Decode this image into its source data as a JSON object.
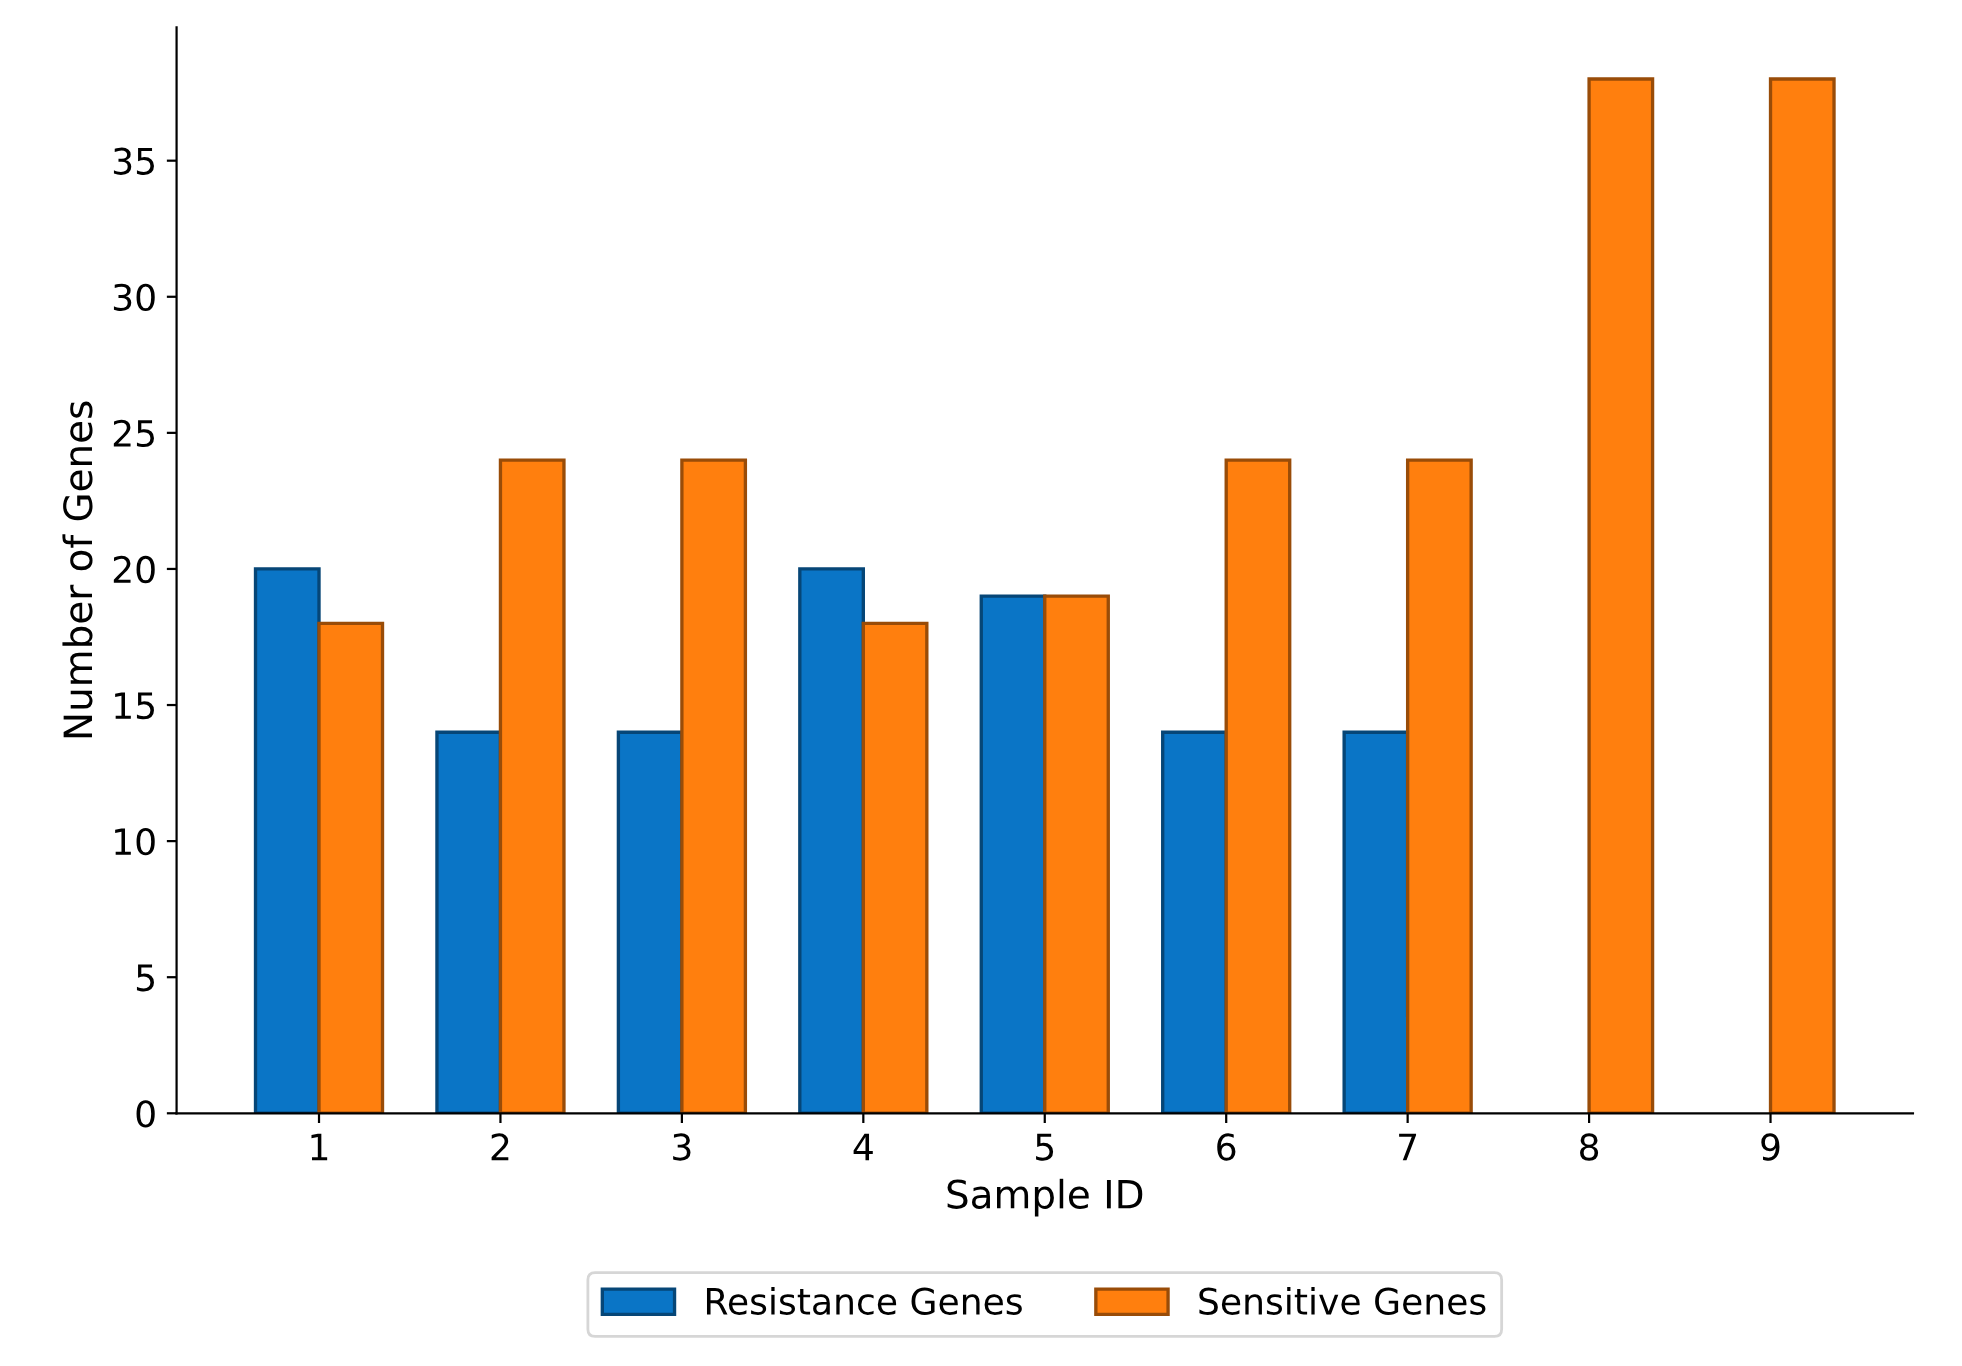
{
  "chart_data": {
    "type": "bar",
    "xlabel": "Sample ID",
    "ylabel": "Number of Genes",
    "categories": [
      "1",
      "2",
      "3",
      "4",
      "5",
      "6",
      "7",
      "8",
      "9"
    ],
    "series": [
      {
        "name": "Resistance Genes",
        "color": "#0a75c6",
        "values": [
          20,
          14,
          14,
          20,
          19,
          14,
          14,
          null,
          null
        ]
      },
      {
        "name": "Sensitive Genes",
        "color": "#ff7f0e",
        "values": [
          18,
          24,
          24,
          18,
          19,
          24,
          24,
          38,
          38
        ]
      }
    ],
    "ylim": [
      0,
      39.9
    ],
    "yticks": [
      0,
      5,
      10,
      15,
      20,
      25,
      30,
      35
    ],
    "grid": false,
    "legend": "bottom"
  }
}
